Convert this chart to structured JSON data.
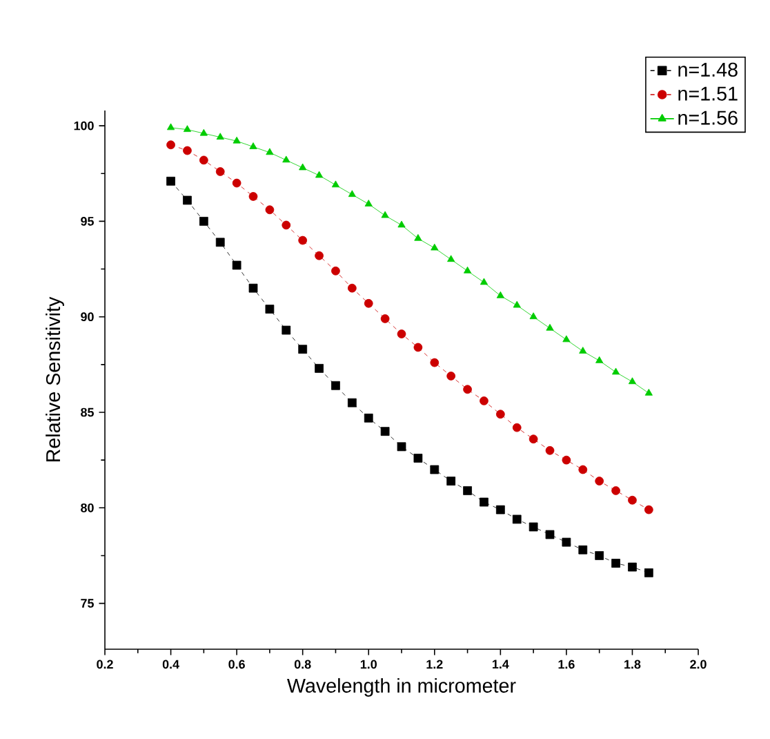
{
  "chart_data": {
    "type": "line",
    "xlabel": "Wavelength in micrometer",
    "ylabel": "Relative Sensitivity",
    "x": [
      0.4,
      0.45,
      0.5,
      0.55,
      0.6,
      0.65,
      0.7,
      0.75,
      0.8,
      0.85,
      0.9,
      0.95,
      1.0,
      1.05,
      1.1,
      1.15,
      1.2,
      1.25,
      1.3,
      1.35,
      1.4,
      1.45,
      1.5,
      1.55,
      1.6,
      1.65,
      1.7,
      1.75,
      1.8,
      1.85
    ],
    "series": [
      {
        "name": "n=1.48",
        "color": "#000000",
        "marker": "square",
        "line_style": "dashed",
        "values": [
          97.1,
          96.1,
          95.0,
          93.9,
          92.7,
          91.5,
          90.4,
          89.3,
          88.3,
          87.3,
          86.4,
          85.5,
          84.7,
          84.0,
          83.2,
          82.6,
          82.0,
          81.4,
          80.9,
          80.3,
          79.9,
          79.4,
          79.0,
          78.6,
          78.2,
          77.8,
          77.5,
          77.1,
          76.9,
          76.6
        ]
      },
      {
        "name": "n=1.51",
        "color": "#cc0000",
        "marker": "circle",
        "line_style": "dashed",
        "values": [
          99.0,
          98.7,
          98.2,
          97.6,
          97.0,
          96.3,
          95.6,
          94.8,
          94.0,
          93.2,
          92.4,
          91.5,
          90.7,
          89.9,
          89.1,
          88.4,
          87.6,
          86.9,
          86.2,
          85.6,
          84.9,
          84.2,
          83.6,
          83.0,
          82.5,
          82.0,
          81.4,
          80.9,
          80.4,
          79.9
        ]
      },
      {
        "name": "n=1.56",
        "color": "#00cc00",
        "marker": "triangle",
        "line_style": "solid",
        "values": [
          99.9,
          99.8,
          99.6,
          99.4,
          99.2,
          98.9,
          98.6,
          98.2,
          97.8,
          97.4,
          96.9,
          96.4,
          95.9,
          95.3,
          94.8,
          94.1,
          93.6,
          93.0,
          92.4,
          91.8,
          91.1,
          90.6,
          90.0,
          89.4,
          88.8,
          88.2,
          87.7,
          87.1,
          86.6,
          86.0
        ]
      }
    ],
    "xlim": [
      0.2,
      2.0
    ],
    "xticks": [
      0.2,
      0.4,
      0.6,
      0.8,
      {
        "value": 1,
        "label": "1.0"
      },
      1.2,
      1.4,
      1.6,
      1.8,
      {
        "value": 2,
        "label": "2.0"
      }
    ],
    "ylim": [
      72.6,
      100.8
    ],
    "yticks": [
      75,
      80,
      85,
      90,
      95,
      100
    ],
    "grid": false,
    "legend": "top right"
  }
}
